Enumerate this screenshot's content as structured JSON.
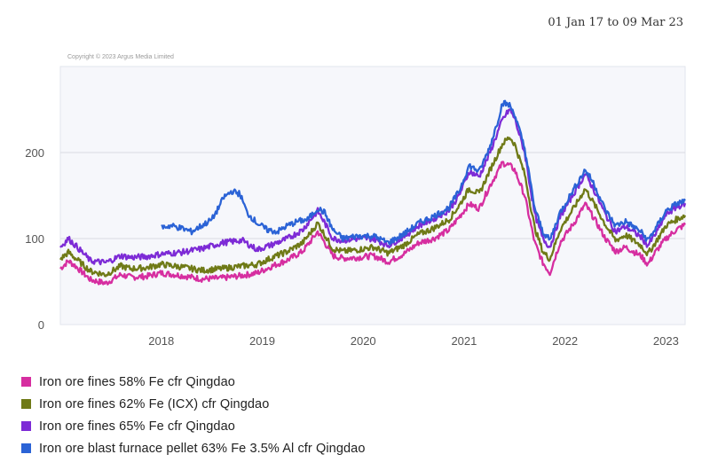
{
  "date_range": "01 Jan 17 to 09 Mar 23",
  "copyright": "Copyright © 2023 Argus Media Limited",
  "chart_data": {
    "type": "line",
    "grid": "horizontal",
    "legend_position": "bottom-left",
    "ylim": [
      0,
      300
    ],
    "xlim": [
      2017.0,
      2023.19
    ],
    "y_ticks": [
      {
        "value": 0,
        "label": "0"
      },
      {
        "value": 100,
        "label": "100"
      },
      {
        "value": 200,
        "label": "200"
      }
    ],
    "x_ticks": [
      {
        "value": 2018,
        "label": "2018"
      },
      {
        "value": 2019,
        "label": "2019"
      },
      {
        "value": 2020,
        "label": "2020"
      },
      {
        "value": 2021,
        "label": "2021"
      },
      {
        "value": 2022,
        "label": "2022"
      },
      {
        "value": 2023,
        "label": "2023"
      }
    ],
    "series": [
      {
        "name": "Iron ore fines 58% Fe cfr Qingdao",
        "color": "#d62ea0",
        "points": [
          [
            2017.0,
            65
          ],
          [
            2017.08,
            74
          ],
          [
            2017.15,
            68
          ],
          [
            2017.3,
            52
          ],
          [
            2017.45,
            48
          ],
          [
            2017.6,
            58
          ],
          [
            2017.7,
            55
          ],
          [
            2017.85,
            56
          ],
          [
            2018.0,
            60
          ],
          [
            2018.2,
            57
          ],
          [
            2018.4,
            53
          ],
          [
            2018.6,
            54
          ],
          [
            2018.8,
            57
          ],
          [
            2018.95,
            60
          ],
          [
            2019.1,
            68
          ],
          [
            2019.25,
            75
          ],
          [
            2019.4,
            85
          ],
          [
            2019.5,
            100
          ],
          [
            2019.55,
            108
          ],
          [
            2019.62,
            95
          ],
          [
            2019.7,
            80
          ],
          [
            2019.8,
            77
          ],
          [
            2019.95,
            78
          ],
          [
            2020.1,
            80
          ],
          [
            2020.25,
            73
          ],
          [
            2020.4,
            82
          ],
          [
            2020.55,
            95
          ],
          [
            2020.7,
            100
          ],
          [
            2020.85,
            110
          ],
          [
            2020.95,
            125
          ],
          [
            2021.05,
            140
          ],
          [
            2021.15,
            135
          ],
          [
            2021.25,
            160
          ],
          [
            2021.38,
            188
          ],
          [
            2021.45,
            185
          ],
          [
            2021.5,
            180
          ],
          [
            2021.6,
            150
          ],
          [
            2021.7,
            95
          ],
          [
            2021.78,
            72
          ],
          [
            2021.85,
            60
          ],
          [
            2021.95,
            95
          ],
          [
            2022.1,
            120
          ],
          [
            2022.2,
            140
          ],
          [
            2022.28,
            125
          ],
          [
            2022.4,
            100
          ],
          [
            2022.5,
            85
          ],
          [
            2022.6,
            90
          ],
          [
            2022.75,
            80
          ],
          [
            2022.82,
            70
          ],
          [
            2022.9,
            85
          ],
          [
            2023.0,
            100
          ],
          [
            2023.1,
            110
          ],
          [
            2023.19,
            116
          ]
        ]
      },
      {
        "name": "Iron ore fines 62% Fe (ICX) cfr Qingdao",
        "color": "#6f7a17",
        "points": [
          [
            2017.0,
            76
          ],
          [
            2017.08,
            84
          ],
          [
            2017.15,
            77
          ],
          [
            2017.3,
            62
          ],
          [
            2017.45,
            58
          ],
          [
            2017.6,
            68
          ],
          [
            2017.7,
            65
          ],
          [
            2017.85,
            66
          ],
          [
            2018.0,
            70
          ],
          [
            2018.2,
            67
          ],
          [
            2018.4,
            63
          ],
          [
            2018.6,
            65
          ],
          [
            2018.8,
            68
          ],
          [
            2018.95,
            70
          ],
          [
            2019.1,
            78
          ],
          [
            2019.25,
            85
          ],
          [
            2019.4,
            95
          ],
          [
            2019.5,
            110
          ],
          [
            2019.55,
            118
          ],
          [
            2019.62,
            104
          ],
          [
            2019.7,
            88
          ],
          [
            2019.8,
            85
          ],
          [
            2019.95,
            87
          ],
          [
            2020.1,
            90
          ],
          [
            2020.25,
            83
          ],
          [
            2020.4,
            92
          ],
          [
            2020.55,
            105
          ],
          [
            2020.7,
            112
          ],
          [
            2020.85,
            122
          ],
          [
            2020.95,
            138
          ],
          [
            2021.05,
            158
          ],
          [
            2021.15,
            152
          ],
          [
            2021.25,
            178
          ],
          [
            2021.38,
            210
          ],
          [
            2021.45,
            218
          ],
          [
            2021.5,
            210
          ],
          [
            2021.6,
            175
          ],
          [
            2021.7,
            112
          ],
          [
            2021.78,
            85
          ],
          [
            2021.85,
            76
          ],
          [
            2021.95,
            110
          ],
          [
            2022.1,
            138
          ],
          [
            2022.2,
            158
          ],
          [
            2022.28,
            142
          ],
          [
            2022.4,
            116
          ],
          [
            2022.5,
            98
          ],
          [
            2022.6,
            104
          ],
          [
            2022.75,
            92
          ],
          [
            2022.82,
            82
          ],
          [
            2022.9,
            96
          ],
          [
            2023.0,
            115
          ],
          [
            2023.1,
            122
          ],
          [
            2023.19,
            127
          ]
        ]
      },
      {
        "name": "Iron ore fines 65% Fe cfr Qingdao",
        "color": "#7d2bd6",
        "points": [
          [
            2017.0,
            90
          ],
          [
            2017.08,
            100
          ],
          [
            2017.15,
            92
          ],
          [
            2017.3,
            74
          ],
          [
            2017.45,
            72
          ],
          [
            2017.6,
            80
          ],
          [
            2017.7,
            78
          ],
          [
            2017.85,
            79
          ],
          [
            2018.0,
            82
          ],
          [
            2018.2,
            84
          ],
          [
            2018.4,
            88
          ],
          [
            2018.6,
            95
          ],
          [
            2018.8,
            98
          ],
          [
            2018.95,
            87
          ],
          [
            2019.1,
            93
          ],
          [
            2019.25,
            100
          ],
          [
            2019.4,
            110
          ],
          [
            2019.5,
            125
          ],
          [
            2019.55,
            132
          ],
          [
            2019.62,
            118
          ],
          [
            2019.7,
            100
          ],
          [
            2019.8,
            98
          ],
          [
            2019.95,
            100
          ],
          [
            2020.1,
            100
          ],
          [
            2020.25,
            92
          ],
          [
            2020.4,
            102
          ],
          [
            2020.55,
            115
          ],
          [
            2020.7,
            123
          ],
          [
            2020.85,
            133
          ],
          [
            2020.95,
            150
          ],
          [
            2021.05,
            178
          ],
          [
            2021.15,
            172
          ],
          [
            2021.25,
            198
          ],
          [
            2021.38,
            238
          ],
          [
            2021.45,
            250
          ],
          [
            2021.5,
            240
          ],
          [
            2021.6,
            200
          ],
          [
            2021.7,
            128
          ],
          [
            2021.78,
            100
          ],
          [
            2021.85,
            90
          ],
          [
            2021.95,
            125
          ],
          [
            2022.1,
            155
          ],
          [
            2022.2,
            175
          ],
          [
            2022.28,
            158
          ],
          [
            2022.4,
            128
          ],
          [
            2022.5,
            108
          ],
          [
            2022.6,
            114
          ],
          [
            2022.75,
            102
          ],
          [
            2022.82,
            92
          ],
          [
            2022.9,
            106
          ],
          [
            2023.0,
            128
          ],
          [
            2023.1,
            136
          ],
          [
            2023.19,
            141
          ]
        ]
      },
      {
        "name": "Iron ore blast furnace pellet 63% Fe 3.5% Al cfr Qingdao",
        "color": "#2b63d6",
        "points": [
          [
            2018.0,
            113
          ],
          [
            2018.1,
            115
          ],
          [
            2018.2,
            112
          ],
          [
            2018.3,
            108
          ],
          [
            2018.4,
            115
          ],
          [
            2018.5,
            122
          ],
          [
            2018.55,
            132
          ],
          [
            2018.62,
            148
          ],
          [
            2018.7,
            155
          ],
          [
            2018.78,
            152
          ],
          [
            2018.85,
            130
          ],
          [
            2018.95,
            118
          ],
          [
            2019.05,
            110
          ],
          [
            2019.15,
            108
          ],
          [
            2019.25,
            115
          ],
          [
            2019.35,
            120
          ],
          [
            2019.45,
            122
          ],
          [
            2019.55,
            135
          ],
          [
            2019.62,
            130
          ],
          [
            2019.7,
            110
          ],
          [
            2019.8,
            100
          ],
          [
            2019.95,
            103
          ],
          [
            2020.1,
            103
          ],
          [
            2020.25,
            95
          ],
          [
            2020.4,
            105
          ],
          [
            2020.55,
            118
          ],
          [
            2020.7,
            126
          ],
          [
            2020.85,
            136
          ],
          [
            2020.95,
            155
          ],
          [
            2021.05,
            185
          ],
          [
            2021.15,
            178
          ],
          [
            2021.25,
            205
          ],
          [
            2021.33,
            235
          ],
          [
            2021.38,
            258
          ],
          [
            2021.45,
            255
          ],
          [
            2021.5,
            245
          ],
          [
            2021.6,
            205
          ],
          [
            2021.7,
            135
          ],
          [
            2021.78,
            108
          ],
          [
            2021.85,
            98
          ],
          [
            2021.95,
            130
          ],
          [
            2022.1,
            160
          ],
          [
            2022.2,
            180
          ],
          [
            2022.28,
            165
          ],
          [
            2022.4,
            133
          ],
          [
            2022.5,
            115
          ],
          [
            2022.6,
            120
          ],
          [
            2022.75,
            108
          ],
          [
            2022.82,
            98
          ],
          [
            2022.9,
            112
          ],
          [
            2023.0,
            132
          ],
          [
            2023.1,
            140
          ],
          [
            2023.19,
            144
          ]
        ]
      }
    ]
  }
}
